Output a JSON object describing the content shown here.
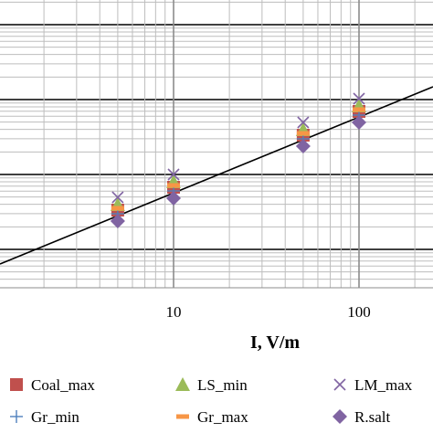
{
  "chart_data": {
    "type": "scatter",
    "xlabel": "I, V/m",
    "x_scale": "log",
    "y_scale": "log",
    "xlim": [
      1.8,
      170
    ],
    "x_ticks": [
      {
        "value": 10,
        "label": "10"
      },
      {
        "value": 100,
        "label": "100"
      }
    ],
    "grid": true,
    "legend_position": "bottom",
    "series": [
      {
        "name": "Coal_max",
        "marker": "square",
        "color": "#c0504d",
        "x": [
          5,
          10,
          50,
          100
        ],
        "y": [
          0.6,
          0.64,
          0.76,
          0.82
        ]
      },
      {
        "name": "LS_min",
        "marker": "triangle",
        "color": "#9bbb59",
        "x": [
          5,
          10,
          50,
          100
        ],
        "y": [
          0.605,
          0.647,
          0.77,
          0.828
        ]
      },
      {
        "name": "LM_max",
        "marker": "x",
        "color": "#8064a2",
        "x": [
          5,
          10,
          50,
          100
        ],
        "y": [
          0.615,
          0.658,
          0.782,
          0.84
        ]
      },
      {
        "name": "Gr_min",
        "marker": "plus",
        "color": "#4f81bd",
        "x": [
          5,
          10,
          50,
          100
        ],
        "y": [
          0.59,
          0.632,
          0.755,
          0.81
        ]
      },
      {
        "name": "Gr_max",
        "marker": "dash",
        "color": "#f79646",
        "x": [
          5,
          10,
          50,
          100
        ],
        "y": [
          0.597,
          0.638,
          0.762,
          0.818
        ]
      },
      {
        "name": "R.salt",
        "marker": "diamond",
        "color": "#8064a2",
        "x": [
          5,
          10,
          50,
          100
        ],
        "y": [
          0.58,
          0.622,
          0.745,
          0.8
        ]
      }
    ],
    "trendline": {
      "x": [
        1.8,
        170
      ],
      "y": [
        0.53,
        0.87
      ]
    }
  }
}
